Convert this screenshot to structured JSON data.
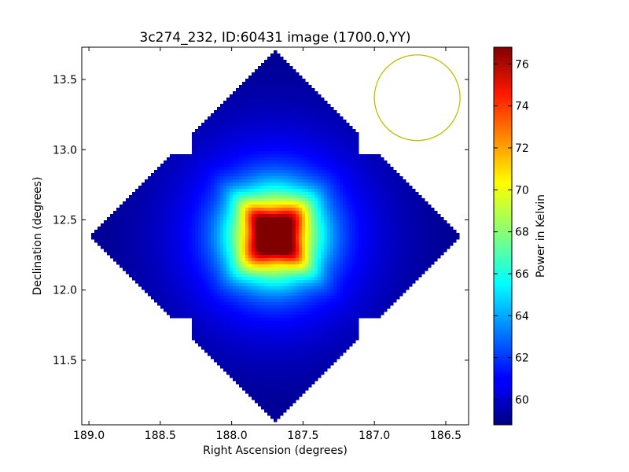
{
  "chart_data": {
    "type": "heatmap",
    "title": "3c274_232, ID:60431 image (1700.0,YY)",
    "xlabel": "Right Ascension (degrees)",
    "ylabel": "Declination (degrees)",
    "colorbar_label": "Power in Kelvin",
    "colormap": "jet",
    "xlim": [
      189.05,
      186.34
    ],
    "ylim": [
      11.04,
      13.73
    ],
    "x_ticks": [
      {
        "value": 189.0,
        "label": "189.0"
      },
      {
        "value": 188.5,
        "label": "188.5"
      },
      {
        "value": 188.0,
        "label": "188.0"
      },
      {
        "value": 187.5,
        "label": "187.5"
      },
      {
        "value": 187.0,
        "label": "187.0"
      },
      {
        "value": 186.5,
        "label": "186.5"
      }
    ],
    "y_ticks": [
      {
        "value": 11.5,
        "label": "11.5"
      },
      {
        "value": 12.0,
        "label": "12.0"
      },
      {
        "value": 12.5,
        "label": "12.5"
      },
      {
        "value": 13.0,
        "label": "13.0"
      },
      {
        "value": 13.5,
        "label": "13.5"
      }
    ],
    "colorbar_range": [
      58.8,
      76.8
    ],
    "colorbar_ticks": [
      {
        "value": 60,
        "label": "60"
      },
      {
        "value": 62,
        "label": "62"
      },
      {
        "value": 64,
        "label": "64"
      },
      {
        "value": 66,
        "label": "66"
      },
      {
        "value": 68,
        "label": "68"
      },
      {
        "value": 70,
        "label": "70"
      },
      {
        "value": 72,
        "label": "72"
      },
      {
        "value": 74,
        "label": "74"
      },
      {
        "value": 76,
        "label": "76"
      }
    ],
    "field_center": {
      "ra": 187.7,
      "dec": 12.39
    },
    "peak": {
      "ra": 187.7,
      "dec": 12.39,
      "value": 76.8
    },
    "background_value": 59.0,
    "beam_marker": {
      "ra": 186.7,
      "dec": 13.37,
      "radius_deg": 0.3,
      "color": "#bfbf00"
    }
  }
}
